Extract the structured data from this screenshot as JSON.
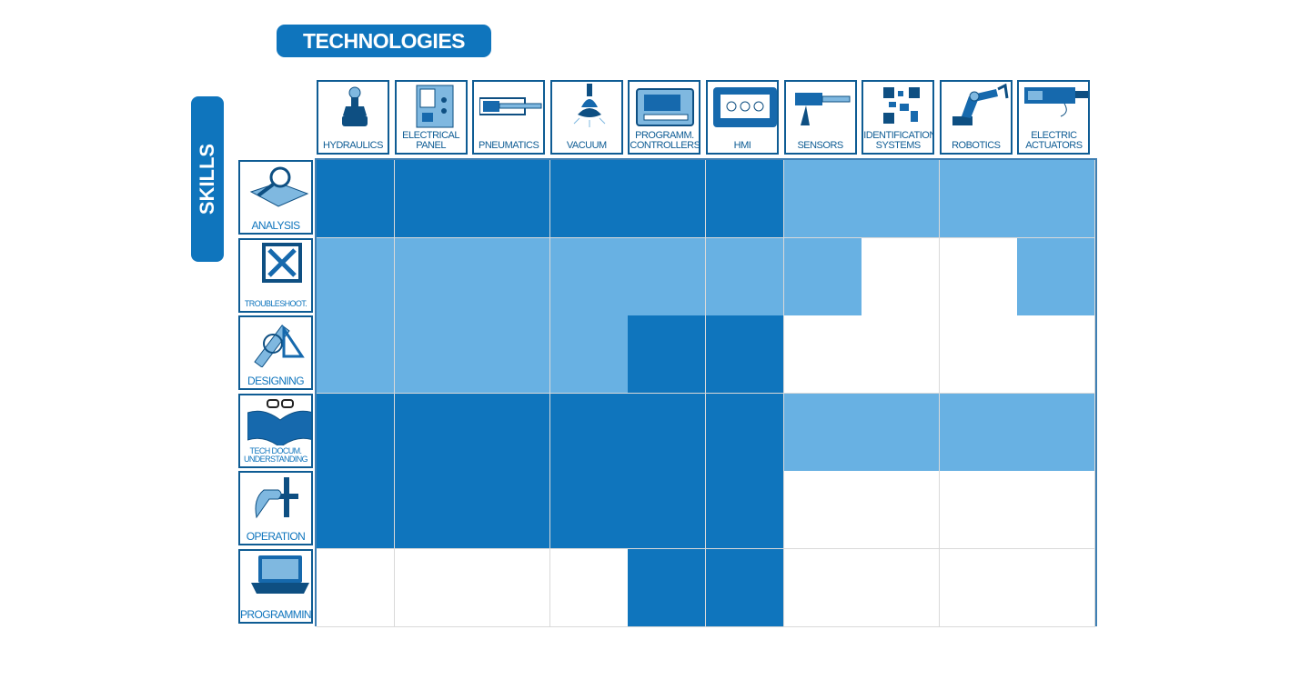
{
  "title": "TECHNOLOGIES",
  "side_title": "SKILLS",
  "colors": {
    "strong": "#0f75bd",
    "light": "#68b1e3",
    "none": "#ffffff",
    "border": "#0e5c94"
  },
  "technologies": [
    {
      "label": "HYDRAULICS",
      "icon": "hydraulic-valve-icon"
    },
    {
      "label": "ELECTRICAL\nPANEL",
      "icon": "electrical-panel-icon"
    },
    {
      "label": "PNEUMATICS",
      "icon": "pneumatic-cylinder-icon"
    },
    {
      "label": "VACUUM",
      "icon": "vacuum-cup-icon"
    },
    {
      "label": "PROGRAMM.\nCONTROLLERS",
      "icon": "plc-icon"
    },
    {
      "label": "HMI",
      "icon": "hmi-panel-icon"
    },
    {
      "label": "SENSORS",
      "icon": "sensor-icon"
    },
    {
      "label": "IDENTIFICATION\nSYSTEMS",
      "icon": "qr-code-icon"
    },
    {
      "label": "ROBOTICS",
      "icon": "robot-arm-icon"
    },
    {
      "label": "ELECTRIC\nACTUATORS",
      "icon": "electric-actuator-icon"
    }
  ],
  "skills": [
    {
      "label": "ANALYSIS",
      "icon": "magnifier-book-icon"
    },
    {
      "label": "TROUBLESHOOT.",
      "icon": "tools-icon"
    },
    {
      "label": "DESIGNING",
      "icon": "drafting-icon"
    },
    {
      "label": "TECH DOCUM.\nUNDERSTANDING",
      "icon": "reading-book-icon"
    },
    {
      "label": "OPERATION",
      "icon": "hand-lever-icon"
    },
    {
      "label": "PROGRAMMING",
      "icon": "laptop-icon"
    }
  ],
  "matrix": [
    [
      2,
      2,
      2,
      2,
      2,
      2,
      1,
      1,
      1,
      1
    ],
    [
      1,
      1,
      1,
      1,
      1,
      1,
      1,
      0,
      0,
      1
    ],
    [
      1,
      1,
      1,
      1,
      2,
      2,
      0,
      0,
      0,
      0
    ],
    [
      2,
      2,
      2,
      2,
      2,
      2,
      1,
      1,
      1,
      1
    ],
    [
      2,
      2,
      2,
      2,
      2,
      2,
      0,
      0,
      0,
      0
    ],
    [
      0,
      0,
      0,
      0,
      2,
      2,
      0,
      0,
      0,
      0
    ]
  ]
}
